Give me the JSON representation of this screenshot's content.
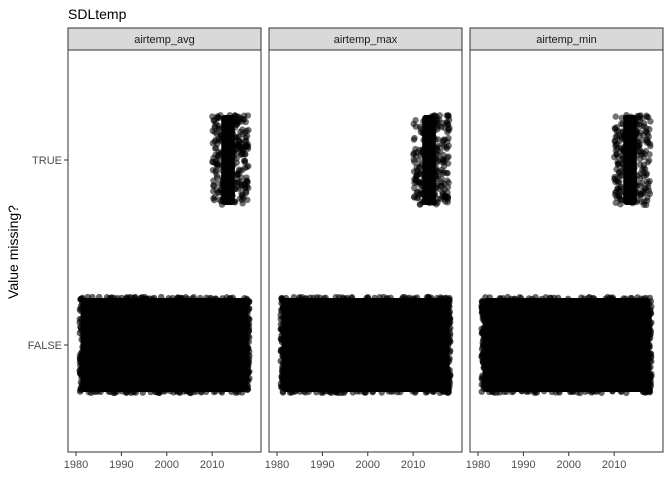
{
  "chart_data": {
    "type": "scatter",
    "title": "SDLtemp",
    "xlabel": "",
    "ylabel": "Value missing?",
    "facet_label_color": "#d9d9d9",
    "point_color": "#000000",
    "x_ticks": [
      1980,
      1990,
      2000,
      2010
    ],
    "xlim": [
      1980,
      2019
    ],
    "y_categories": [
      "FALSE",
      "TRUE"
    ],
    "grid": false,
    "legend": "none",
    "panels": [
      {
        "label": "airtemp_avg",
        "points": [
          {
            "category": "FALSE",
            "x_range": [
              1981,
              2018
            ],
            "description_jitter": 0.4
          },
          {
            "category": "TRUE",
            "x_range": [
              2010,
              2018
            ],
            "dense_x_range": [
              2012,
              2015
            ]
          }
        ]
      },
      {
        "label": "airtemp_max",
        "points": [
          {
            "category": "FALSE",
            "x_range": [
              1981,
              2018
            ]
          },
          {
            "category": "TRUE",
            "x_range": [
              2010,
              2018
            ],
            "dense_x_range": [
              2012,
              2015
            ]
          }
        ]
      },
      {
        "label": "airtemp_min",
        "points": [
          {
            "category": "FALSE",
            "x_range": [
              1981,
              2018
            ]
          },
          {
            "category": "TRUE",
            "x_range": [
              2010,
              2018
            ],
            "dense_x_range": [
              2012,
              2015
            ]
          }
        ]
      }
    ]
  }
}
